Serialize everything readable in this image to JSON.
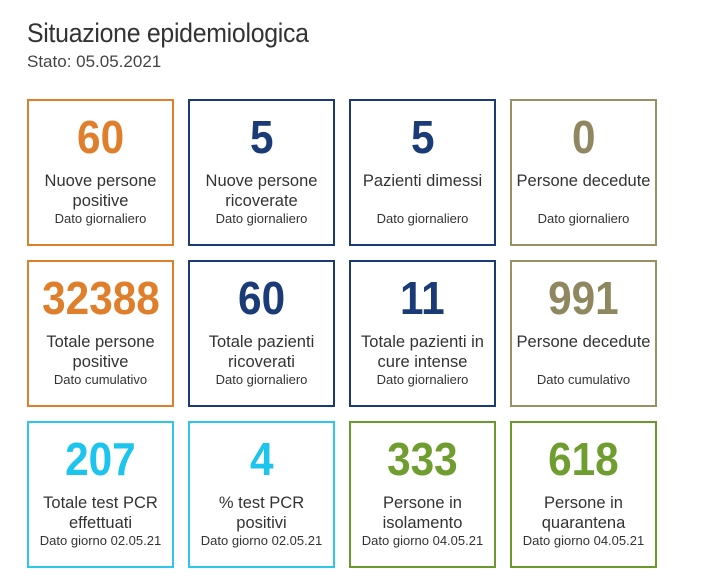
{
  "header": {
    "title": "Situazione epidemiologica",
    "subtitle": "Stato: 05.05.2021"
  },
  "colors": {
    "orange": "#e07f2b",
    "navy": "#1a3b75",
    "olive": "#8f8760",
    "cyan": "#1cc4ee",
    "green": "#6f9d2f"
  },
  "cards": [
    {
      "value": "60",
      "label": "Nuove persone positive",
      "note": "Dato giornaliero"
    },
    {
      "value": "5",
      "label": "Nuove persone ricoverate",
      "note": "Dato giornaliero"
    },
    {
      "value": "5",
      "label": "Pazienti dimessi",
      "note": "Dato giornaliero"
    },
    {
      "value": "0",
      "label": "Persone decedute",
      "note": "Dato giornaliero"
    },
    {
      "value": "32388",
      "label": "Totale persone positive",
      "note": "Dato cumulativo"
    },
    {
      "value": "60",
      "label": "Totale pazienti ricoverati",
      "note": "Dato giornaliero"
    },
    {
      "value": "11",
      "label": "Totale pazienti in cure intense",
      "note": "Dato giornaliero"
    },
    {
      "value": "991",
      "label": "Persone decedute",
      "note": "Dato cumulativo"
    },
    {
      "value": "207",
      "label": "Totale test PCR effettuati",
      "note": "Dato giorno 02.05.21"
    },
    {
      "value": "4",
      "label": "% test PCR positivi",
      "note": "Dato giorno 02.05.21"
    },
    {
      "value": "333",
      "label": "Persone in isolamento",
      "note": "Dato giorno 04.05.21"
    },
    {
      "value": "618",
      "label": "Persone in quarantena",
      "note": "Dato giorno 04.05.21"
    }
  ]
}
